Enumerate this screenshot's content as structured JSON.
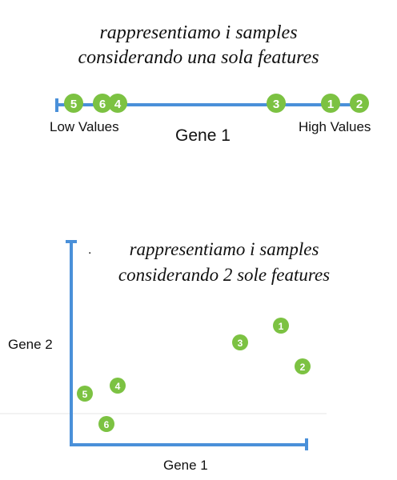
{
  "top_panel": {
    "caption_line1": "rappresentiamo i samples",
    "caption_line2": "considerando una sola features",
    "low_label": "Low Values",
    "high_label": "High Values",
    "axis_label": "Gene 1",
    "samples": [
      "5",
      "6",
      "4",
      "3",
      "1",
      "2"
    ]
  },
  "bottom_panel": {
    "caption_line1": "rappresentiamo i samples",
    "caption_line2": "considerando 2 sole features",
    "stray_mark": ".",
    "x_label": "Gene 1",
    "y_label": "Gene 2",
    "samples": [
      "1",
      "2",
      "3",
      "4",
      "5",
      "6"
    ]
  },
  "colors": {
    "axis": "#4a90d9",
    "node": "#7cc242",
    "node_text": "#ffffff"
  }
}
